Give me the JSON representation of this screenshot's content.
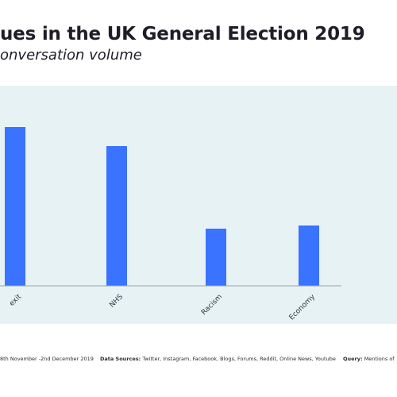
{
  "header": {
    "title": "ues in the UK General Election 2019",
    "subtitle": "onversation volume"
  },
  "chart_data": {
    "type": "bar",
    "categories": [
      "exit",
      "NHS",
      "Racism",
      "Economy"
    ],
    "values": [
      100,
      88,
      36,
      38
    ],
    "ylim": [
      0,
      110
    ],
    "grid": false,
    "bar_color": "#3a73ff",
    "background_color": "#e6f2f3"
  },
  "footer": {
    "date_range": "8th November -2nd December 2019",
    "sources_label": "Data Sources:",
    "sources_value": "Twitter, Instagram, Facebook, Blogs, Forums, Reddit, Online News, Youtube",
    "query_label": "Query:",
    "query_value": "Mentions of"
  }
}
